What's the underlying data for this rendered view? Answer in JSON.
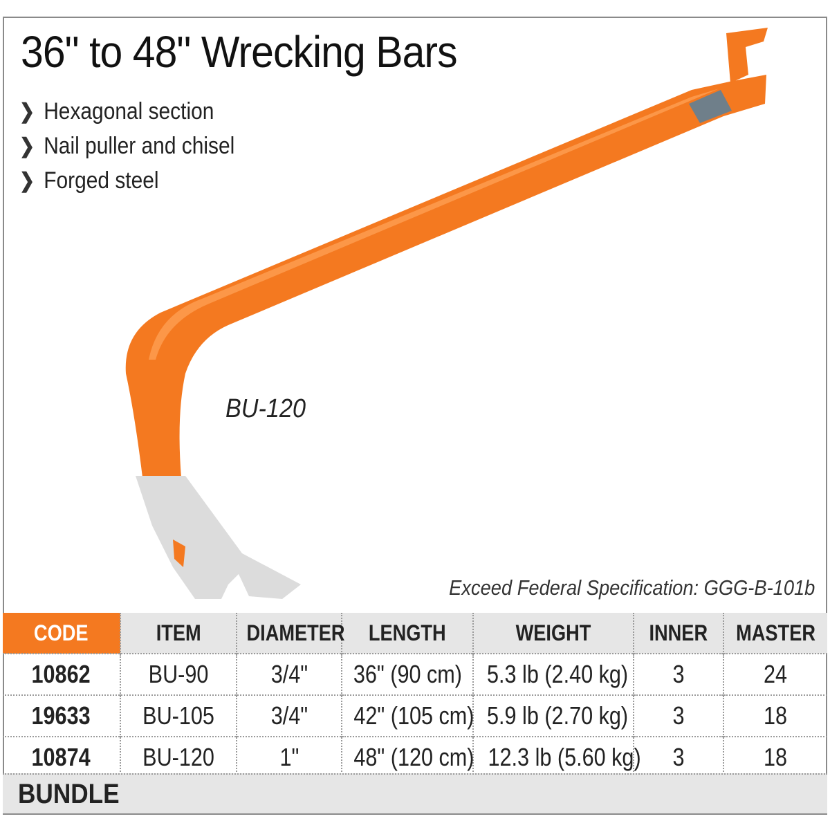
{
  "title": "36\" to 48\" Wrecking Bars",
  "features": [
    "Hexagonal section",
    "Nail puller and chisel",
    "Forged steel"
  ],
  "bullet_glyph": "❯",
  "model_label": "BU-120",
  "spec_note": "Exceed Federal Specification: GGG-B-101b",
  "table": {
    "headers": [
      "CODE",
      "ITEM",
      "DIAMETER",
      "LENGTH",
      "WEIGHT",
      "INNER",
      "MASTER"
    ],
    "rows": [
      [
        "10862",
        "BU-90",
        "3/4\"",
        "36\" (90 cm)",
        "5.3 lb (2.40 kg)",
        "3",
        "24"
      ],
      [
        "19633",
        "BU-105",
        "3/4\"",
        "42\" (105 cm)",
        "5.9 lb (2.70 kg)",
        "3",
        "18"
      ],
      [
        "10874",
        "BU-120",
        "1\"",
        "48\" (120 cm)",
        "12.3 lb (5.60 kg)",
        "3",
        "18"
      ]
    ]
  },
  "bundle_label": "BUNDLE",
  "colors": {
    "accent": "#f47920",
    "header_bg": "#e6e6e6",
    "steel": "#d9d9d9",
    "grip": "#6f7f8a"
  }
}
